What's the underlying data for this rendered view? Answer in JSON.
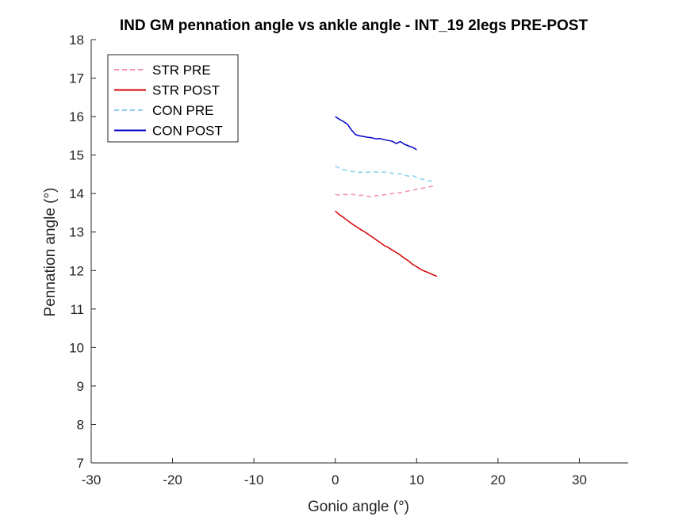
{
  "chart_data": {
    "type": "line",
    "title": "IND GM pennation angle vs ankle angle - INT_19 2legs PRE-POST",
    "xlabel": "Gonio angle (°)",
    "ylabel": "Pennation angle (°)",
    "xlim": [
      -30,
      36
    ],
    "ylim": [
      7,
      18
    ],
    "xticks": [
      -30,
      -20,
      -10,
      0,
      10,
      20,
      30
    ],
    "yticks": [
      7,
      8,
      9,
      10,
      11,
      12,
      13,
      14,
      15,
      16,
      17,
      18
    ],
    "grid": false,
    "legend_position": "top-left",
    "series": [
      {
        "name": "STR PRE",
        "color": "#f58fb4",
        "dash": true,
        "x": [
          0,
          0.5,
          1,
          1.5,
          2,
          2.5,
          3,
          3.5,
          4,
          4.5,
          5,
          5.5,
          6,
          6.5,
          7,
          7.5,
          8,
          8.5,
          9,
          9.5,
          10,
          10.5,
          11,
          11.5,
          12
        ],
        "y": [
          13.98,
          13.96,
          13.98,
          13.97,
          13.99,
          13.96,
          13.95,
          13.96,
          13.93,
          13.91,
          13.95,
          13.94,
          13.97,
          13.98,
          14.0,
          14.02,
          14.02,
          14.05,
          14.07,
          14.08,
          14.12,
          14.13,
          14.15,
          14.17,
          14.2
        ]
      },
      {
        "name": "STR POST",
        "color": "#d40000",
        "dash": false,
        "x": [
          0,
          0.5,
          1,
          1.5,
          2,
          2.5,
          3,
          3.5,
          4,
          4.5,
          5,
          5.5,
          6,
          6.5,
          7,
          7.5,
          8,
          8.5,
          9,
          9.5,
          10,
          10.5,
          11,
          11.5,
          12,
          12.5
        ],
        "y": [
          13.55,
          13.45,
          13.38,
          13.3,
          13.22,
          13.15,
          13.08,
          13.02,
          12.95,
          12.88,
          12.8,
          12.73,
          12.65,
          12.6,
          12.53,
          12.47,
          12.4,
          12.32,
          12.25,
          12.16,
          12.1,
          12.03,
          11.98,
          11.94,
          11.89,
          11.85
        ]
      },
      {
        "name": "CON PRE",
        "color": "#8dcff0",
        "dash": true,
        "x": [
          0,
          0.5,
          1,
          1.5,
          2,
          2.5,
          3,
          3.5,
          4,
          4.5,
          5,
          5.5,
          6,
          6.5,
          7,
          7.5,
          8,
          8.5,
          9,
          9.5,
          10,
          10.5,
          11,
          11.5,
          12
        ],
        "y": [
          14.72,
          14.66,
          14.62,
          14.6,
          14.58,
          14.56,
          14.55,
          14.56,
          14.55,
          14.57,
          14.56,
          14.55,
          14.56,
          14.55,
          14.53,
          14.5,
          14.52,
          14.48,
          14.45,
          14.47,
          14.42,
          14.38,
          14.36,
          14.33,
          14.32
        ]
      },
      {
        "name": "CON POST",
        "color": "#0000c8",
        "dash": false,
        "x": [
          0,
          0.5,
          1,
          1.5,
          2,
          2.5,
          3,
          3.5,
          4,
          4.5,
          5,
          5.5,
          6,
          6.5,
          7,
          7.5,
          8,
          8.5,
          9,
          9.5,
          10
        ],
        "y": [
          16.0,
          15.93,
          15.87,
          15.8,
          15.65,
          15.53,
          15.5,
          15.48,
          15.46,
          15.45,
          15.42,
          15.43,
          15.4,
          15.38,
          15.36,
          15.3,
          15.35,
          15.28,
          15.24,
          15.2,
          15.14
        ]
      }
    ]
  }
}
